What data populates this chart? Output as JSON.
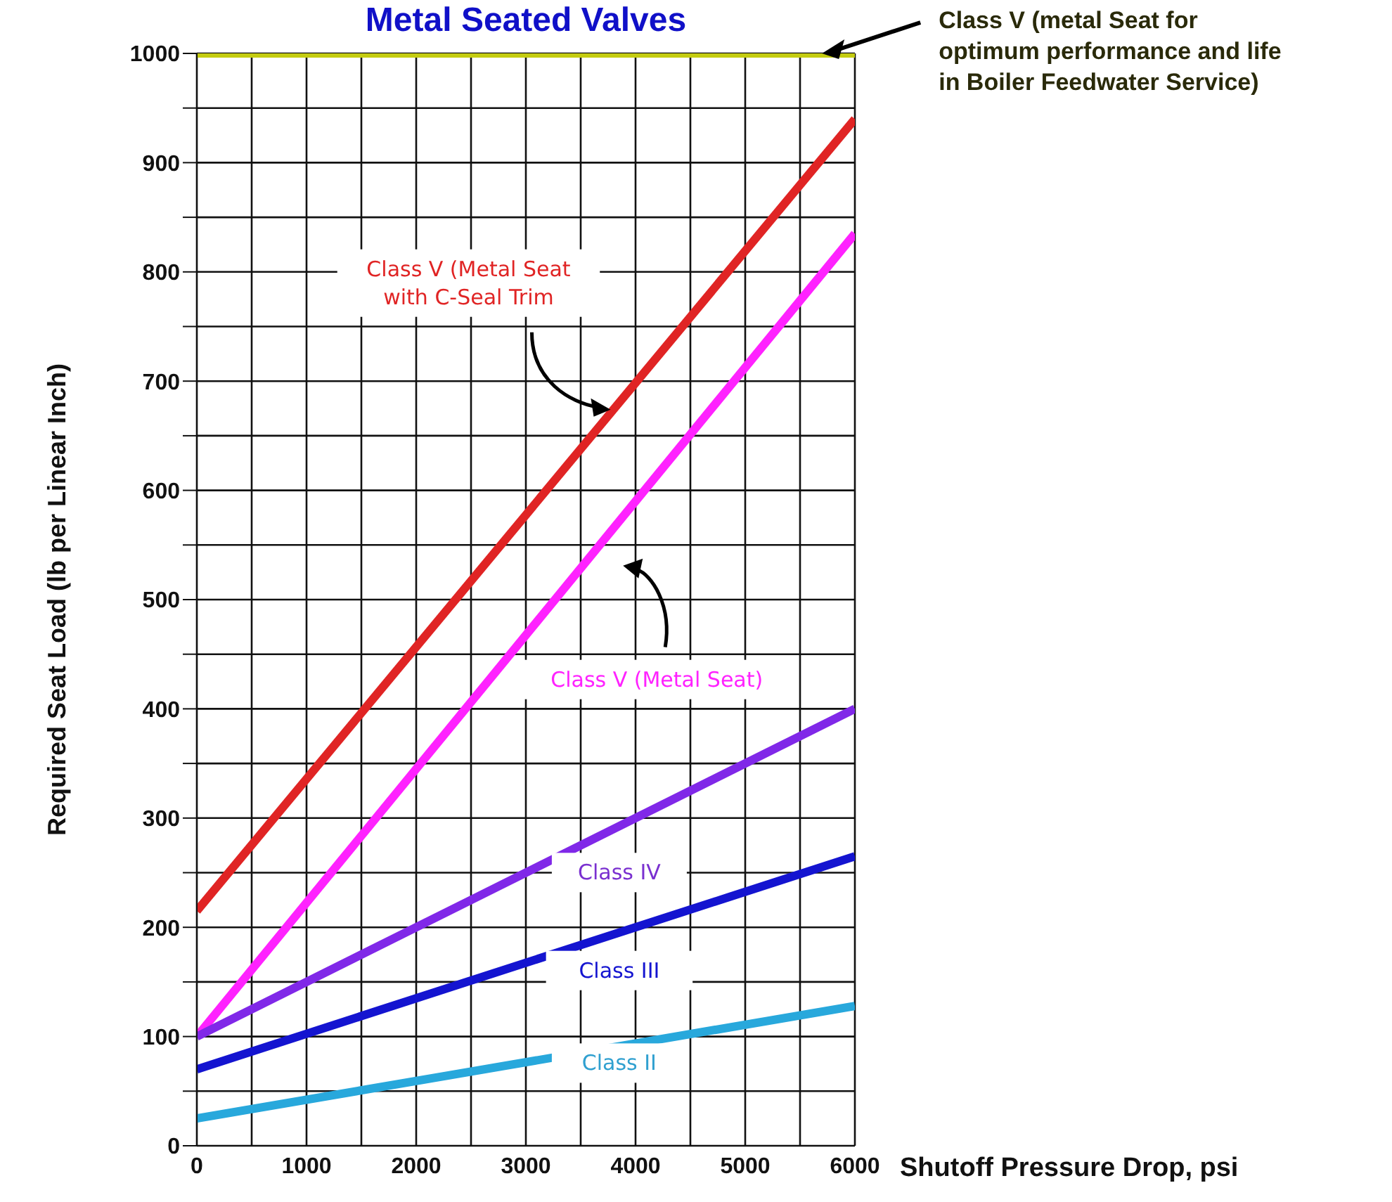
{
  "chart_data": {
    "type": "line",
    "title": "Metal Seated Valves",
    "xlabel": "Shutoff Pressure Drop, psi",
    "ylabel": "Required Seat Load (lb per Linear Inch)",
    "xlim": [
      0,
      6000
    ],
    "ylim": [
      0,
      1000
    ],
    "xticks": [
      0,
      {
        "value": 500,
        "label": null
      },
      1000,
      {
        "value": 1500,
        "label": null
      },
      2000,
      {
        "value": 2500,
        "label": null
      },
      3000,
      {
        "value": 3500,
        "label": null
      },
      4000,
      {
        "value": 4500,
        "label": null
      },
      5000,
      {
        "value": 5500,
        "label": null
      },
      6000
    ],
    "yticks": [
      0,
      {
        "value": 50,
        "label": null
      },
      100,
      {
        "value": 150,
        "label": null
      },
      200,
      {
        "value": 250,
        "label": null
      },
      300,
      {
        "value": 350,
        "label": null
      },
      400,
      {
        "value": 450,
        "label": null
      },
      500,
      {
        "value": 550,
        "label": null
      },
      600,
      {
        "value": 650,
        "label": null
      },
      700,
      {
        "value": 750,
        "label": null
      },
      800,
      {
        "value": 850,
        "label": null
      },
      900,
      {
        "value": 950,
        "label": null
      },
      1000
    ],
    "grid": true,
    "marker": "none",
    "line_style": "solid",
    "x": [
      0,
      6000
    ],
    "series": [
      {
        "name": "Class V (metal Seat for optimum performance and life in Boiler Feedwater Service)",
        "color": "#c4cc10",
        "values": [
          1000,
          1000
        ]
      },
      {
        "name": "Class V (Metal Seat with C-Seal Trim",
        "color": "#e02424",
        "values": [
          215,
          940
        ]
      },
      {
        "name": "Class V (Metal Seat)",
        "color": "#ff22ff",
        "values": [
          100,
          835
        ]
      },
      {
        "name": "Class IV",
        "color": "#8028e8",
        "values": [
          100,
          400
        ]
      },
      {
        "name": "Class III",
        "color": "#1414d0",
        "values": [
          70,
          265
        ]
      },
      {
        "name": "Class II",
        "color": "#28a8dc",
        "values": [
          25,
          128
        ]
      }
    ]
  }
}
